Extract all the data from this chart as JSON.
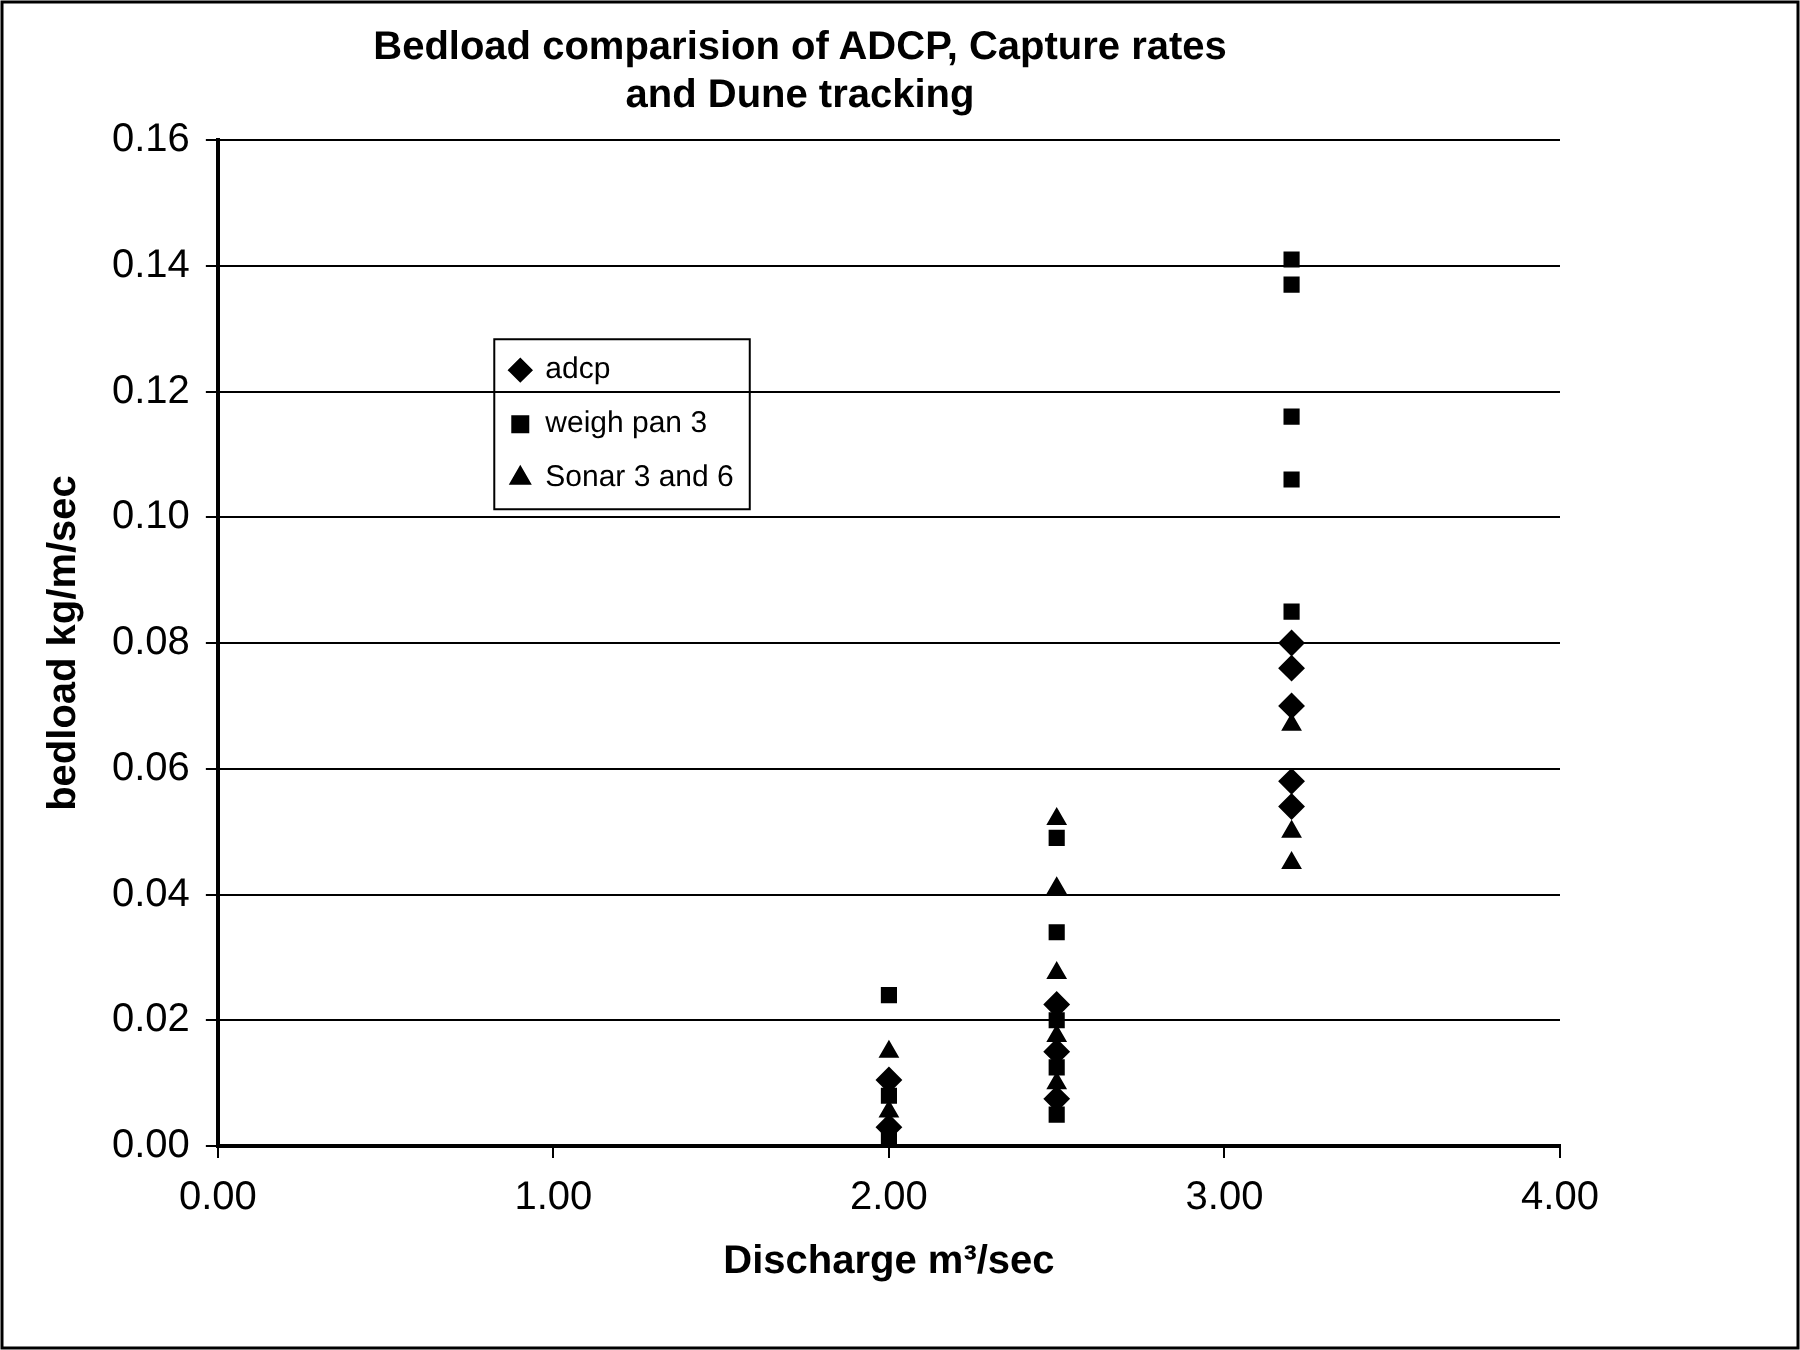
{
  "chart_data": {
    "type": "scatter",
    "title": "Bedload comparision of ADCP, Capture rates and Dune tracking",
    "xlabel": "Discharge m³/sec",
    "ylabel": "bedload kg/m/sec",
    "xlim": [
      0,
      4
    ],
    "xticks": [
      {
        "value": 0,
        "label": "0.00"
      },
      {
        "value": 1,
        "label": "1.00"
      },
      {
        "value": 2,
        "label": "2.00"
      },
      {
        "value": 3,
        "label": "3.00"
      },
      {
        "value": 4,
        "label": "4.00"
      }
    ],
    "ylim": [
      0,
      0.16
    ],
    "yticks": [
      {
        "value": 0,
        "label": "0.00"
      },
      {
        "value": 0.02,
        "label": "0.02"
      },
      {
        "value": 0.04,
        "label": "0.04"
      },
      {
        "value": 0.06,
        "label": "0.06"
      },
      {
        "value": 0.08,
        "label": "0.08"
      },
      {
        "value": 0.1,
        "label": "0.10"
      },
      {
        "value": 0.12,
        "label": "0.12"
      },
      {
        "value": 0.14,
        "label": "0.14"
      },
      {
        "value": 0.16,
        "label": "0.16"
      }
    ],
    "grid": "y",
    "legend": "top left",
    "series": [
      {
        "name": "adcp",
        "color": "#000000",
        "marker": "diamond",
        "x": [
          2,
          2,
          2.5,
          2.5,
          2.5,
          3.2,
          3.2,
          3.2,
          3.2,
          3.2
        ],
        "values": [
          0.003,
          0.0105,
          0.0075,
          0.015,
          0.0225,
          0.08,
          0.076,
          0.07,
          0.058,
          0.054
        ]
      },
      {
        "name": "weigh pan 3",
        "color": "#000000",
        "marker": "square",
        "x": [
          2,
          2,
          2,
          2.5,
          2.5,
          2.5,
          2.5,
          2.5,
          3.2,
          3.2,
          3.2,
          3.2,
          3.2
        ],
        "values": [
          0.024,
          0.008,
          0.001,
          0.049,
          0.034,
          0.02,
          0.0125,
          0.005,
          0.141,
          0.137,
          0.116,
          0.106,
          0.085
        ]
      },
      {
        "name": "Sonar 3 and 6",
        "color": "#000000",
        "marker": "triangle",
        "x": [
          2,
          2,
          2.5,
          2.5,
          2.5,
          2.5,
          2.5,
          3.2,
          3.2,
          3.2
        ],
        "values": [
          0.015,
          0.0055,
          0.052,
          0.041,
          0.0275,
          0.0175,
          0.01,
          0.067,
          0.05,
          0.045
        ]
      }
    ]
  }
}
